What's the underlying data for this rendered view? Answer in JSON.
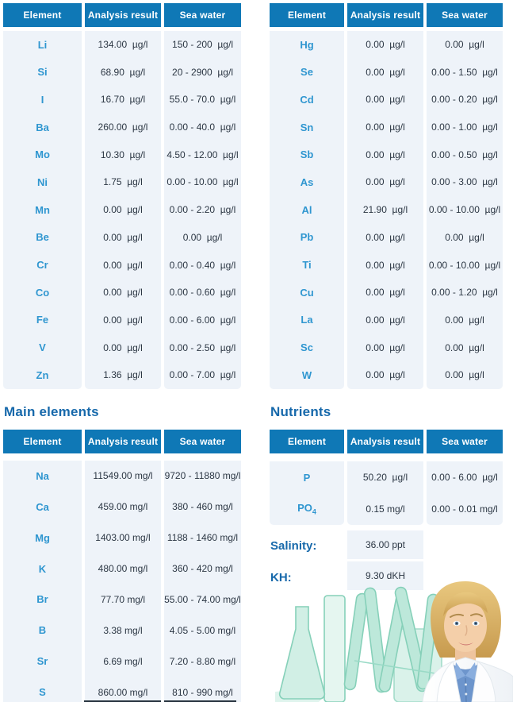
{
  "colors": {
    "header_bg": "#0f78b6",
    "panel_bg": "#eef3f9",
    "element_color": "#2f96d0",
    "title_color": "#1769ab",
    "value_color": "#2c3744",
    "header_text": "#ffffff",
    "glass_teal": "#79ccb2"
  },
  "columns": [
    "Element",
    "Analysis result",
    "Sea water"
  ],
  "tables": {
    "trace_left": {
      "rows": [
        {
          "el": "Li",
          "result": "134.00  µg/l",
          "sea": "150 - 200  µg/l"
        },
        {
          "el": "Si",
          "result": "68.90  µg/l",
          "sea": "20 - 2900  µg/l"
        },
        {
          "el": "I",
          "result": "16.70  µg/l",
          "sea": "55.0 - 70.0  µg/l"
        },
        {
          "el": "Ba",
          "result": "260.00  µg/l",
          "sea": "0.00 - 40.0  µg/l"
        },
        {
          "el": "Mo",
          "result": "10.30  µg/l",
          "sea": "4.50 - 12.00  µg/l"
        },
        {
          "el": "Ni",
          "result": "1.75  µg/l",
          "sea": "0.00 - 10.00  µg/l"
        },
        {
          "el": "Mn",
          "result": "0.00  µg/l",
          "sea": "0.00 - 2.20  µg/l"
        },
        {
          "el": "Be",
          "result": "0.00  µg/l",
          "sea": "0.00  µg/l"
        },
        {
          "el": "Cr",
          "result": "0.00  µg/l",
          "sea": "0.00 - 0.40  µg/l"
        },
        {
          "el": "Co",
          "result": "0.00  µg/l",
          "sea": "0.00 - 0.60  µg/l"
        },
        {
          "el": "Fe",
          "result": "0.00  µg/l",
          "sea": "0.00 - 6.00  µg/l"
        },
        {
          "el": "V",
          "result": "0.00  µg/l",
          "sea": "0.00 - 2.50  µg/l"
        },
        {
          "el": "Zn",
          "result": "1.36  µg/l",
          "sea": "0.00 - 7.00  µg/l"
        }
      ]
    },
    "trace_right": {
      "rows": [
        {
          "el": "Hg",
          "result": "0.00  µg/l",
          "sea": "0.00  µg/l"
        },
        {
          "el": "Se",
          "result": "0.00  µg/l",
          "sea": "0.00 - 1.50  µg/l"
        },
        {
          "el": "Cd",
          "result": "0.00  µg/l",
          "sea": "0.00 - 0.20  µg/l"
        },
        {
          "el": "Sn",
          "result": "0.00  µg/l",
          "sea": "0.00 - 1.00  µg/l"
        },
        {
          "el": "Sb",
          "result": "0.00  µg/l",
          "sea": "0.00 - 0.50  µg/l"
        },
        {
          "el": "As",
          "result": "0.00  µg/l",
          "sea": "0.00 - 3.00  µg/l"
        },
        {
          "el": "Al",
          "result": "21.90  µg/l",
          "sea": "0.00 - 10.00  µg/l"
        },
        {
          "el": "Pb",
          "result": "0.00  µg/l",
          "sea": "0.00  µg/l"
        },
        {
          "el": "Ti",
          "result": "0.00  µg/l",
          "sea": "0.00 - 10.00  µg/l"
        },
        {
          "el": "Cu",
          "result": "0.00  µg/l",
          "sea": "0.00 - 1.20  µg/l"
        },
        {
          "el": "La",
          "result": "0.00  µg/l",
          "sea": "0.00  µg/l"
        },
        {
          "el": "Sc",
          "result": "0.00  µg/l",
          "sea": "0.00  µg/l"
        },
        {
          "el": "W",
          "result": "0.00  µg/l",
          "sea": "0.00  µg/l"
        }
      ]
    },
    "main": {
      "title": "Main elements",
      "rows": [
        {
          "el": "Na",
          "result": "11549.00 mg/l",
          "sea": "9720 - 11880 mg/l"
        },
        {
          "el": "Ca",
          "result": "459.00 mg/l",
          "sea": "380 - 460 mg/l"
        },
        {
          "el": "Mg",
          "result": "1403.00 mg/l",
          "sea": "1188 - 1460 mg/l"
        },
        {
          "el": "K",
          "result": "480.00 mg/l",
          "sea": "360 - 420 mg/l"
        },
        {
          "el": "Br",
          "result": "77.70 mg/l",
          "sea": "55.00 - 74.00 mg/l"
        },
        {
          "el": "B",
          "result": "3.38 mg/l",
          "sea": "4.05 - 5.00 mg/l"
        },
        {
          "el": "Sr",
          "result": "6.69 mg/l",
          "sea": "7.20 - 8.80 mg/l"
        },
        {
          "el": "S",
          "result": "860.00 mg/l",
          "sea": "810 - 990 mg/l"
        }
      ]
    },
    "nutrients": {
      "title": "Nutrients",
      "rows": [
        {
          "el": "P",
          "result": "50.20  µg/l",
          "sea": "0.00 - 6.00  µg/l"
        },
        {
          "el": "PO",
          "sub": "4",
          "result": "0.15 mg/l",
          "sea": "0.00 - 0.01 mg/l"
        }
      ]
    }
  },
  "readings": {
    "salinity_label": "Salinity:",
    "salinity_value": "36.00 ppt",
    "kh_label": "KH:",
    "kh_value": "9.30 dKH"
  },
  "photo": {
    "alt": "Female lab technician in white coat with teal laboratory glassware"
  }
}
